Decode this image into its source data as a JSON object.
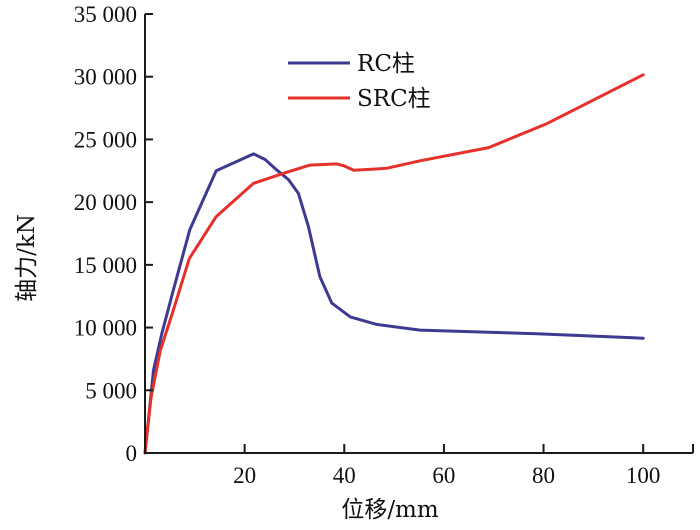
{
  "chart_data": {
    "type": "line",
    "title": "",
    "xlabel": "位移/mm",
    "ylabel": "轴力/kN",
    "xlim": [
      0,
      110
    ],
    "ylim": [
      0,
      35000
    ],
    "x_ticks": [
      20,
      40,
      60,
      80,
      100,
      110
    ],
    "x_tick_labels": [
      "20",
      "40",
      "60",
      "80",
      "100",
      ""
    ],
    "y_ticks": [
      0,
      5000,
      10000,
      15000,
      20000,
      25000,
      30000,
      35000
    ],
    "y_tick_labels": [
      "0",
      "5 000",
      "10 000",
      "15 000",
      "20 000",
      "25 000",
      "30 000",
      "35 000"
    ],
    "grid": false,
    "legend_position": "top-center",
    "series": [
      {
        "name": "RC柱",
        "color": "#3d3a91",
        "x": [
          0,
          1.7,
          3.4,
          5.7,
          9.0,
          14.3,
          21.8,
          24.1,
          26.5,
          28.8,
          30.8,
          32.8,
          35.1,
          37.5,
          41.2,
          46.5,
          55.2,
          78.6,
          100
        ],
        "y": [
          0,
          6600,
          9550,
          13000,
          17800,
          22500,
          23850,
          23400,
          22550,
          21800,
          20700,
          18050,
          14050,
          11950,
          10850,
          10250,
          9800,
          9500,
          9150
        ]
      },
      {
        "name": "SRC柱",
        "color": "#e6302a",
        "x": [
          0,
          1.2,
          3.1,
          5.7,
          8.9,
          14.3,
          21.8,
          27.8,
          33.1,
          38.5,
          39.9,
          41.9,
          48.5,
          55.2,
          69.0,
          80.6,
          100
        ],
        "y": [
          0,
          4400,
          8200,
          11400,
          15500,
          18850,
          21500,
          22300,
          22950,
          23050,
          22900,
          22550,
          22700,
          23300,
          24350,
          26250,
          30150
        ]
      }
    ]
  }
}
